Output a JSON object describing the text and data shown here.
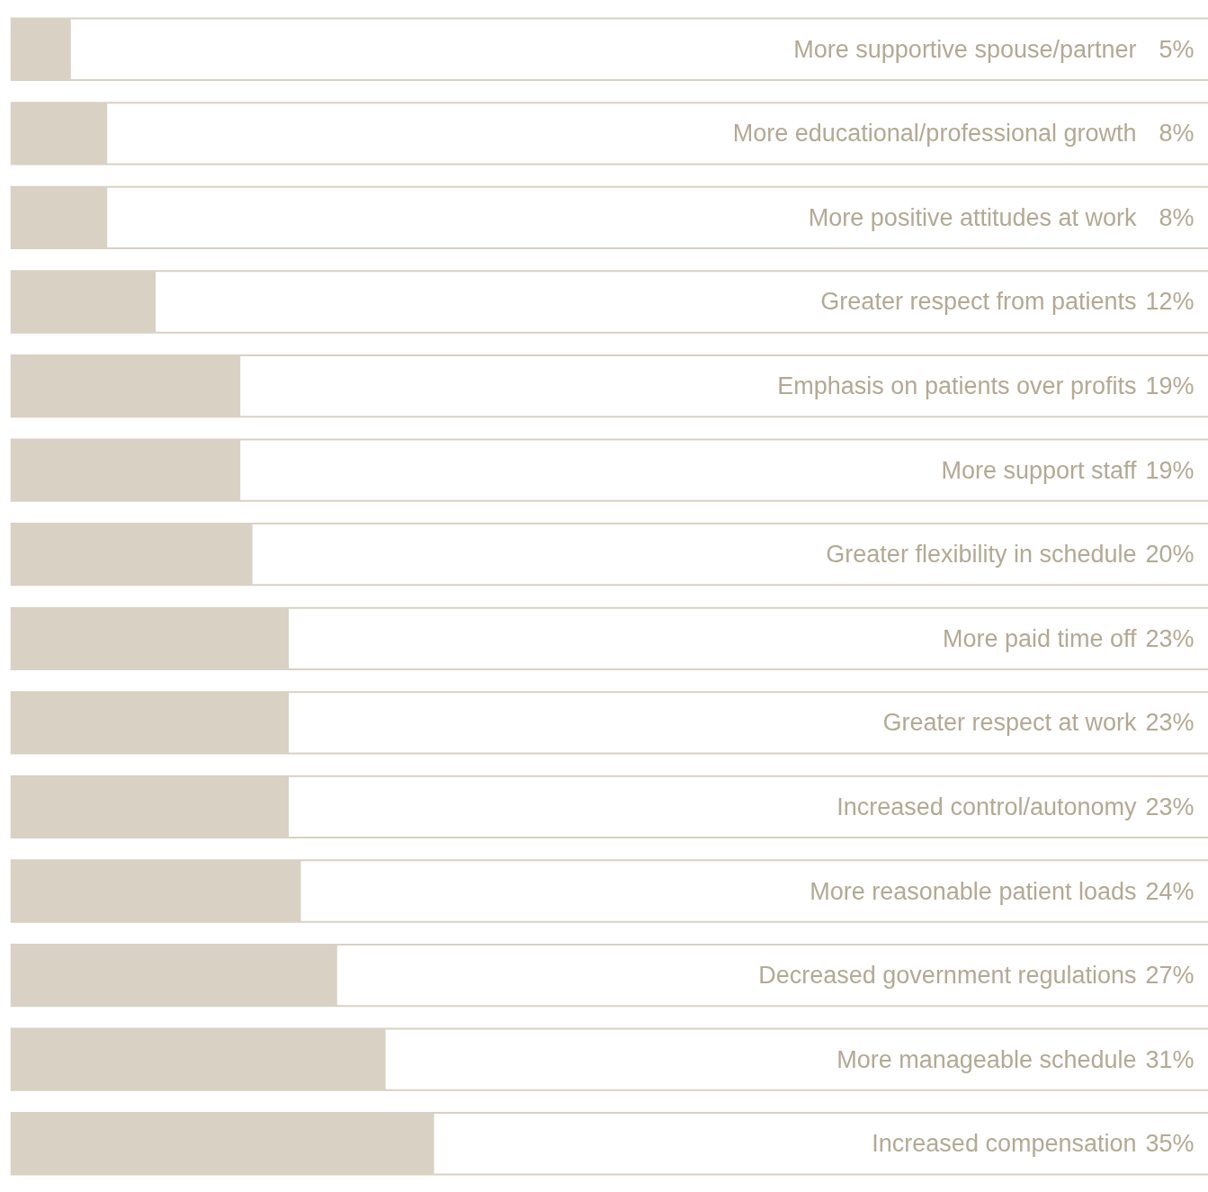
{
  "chart_data": {
    "type": "bar",
    "orientation": "horizontal",
    "color": "#d8d1c4",
    "categories": [
      "More supportive spouse/partner",
      "More educational/professional growth",
      "More positive attitudes at work",
      "Greater respect from patients",
      "Emphasis on patients over profits",
      "More support staff",
      "Greater flexibility in schedule",
      "More paid time off",
      "Greater respect at work",
      "Increased control/autonomy",
      "More reasonable patient loads",
      "Decreased government regulations",
      "More manageable schedule",
      "Increased compensation"
    ],
    "values": [
      5,
      8,
      8,
      12,
      19,
      19,
      20,
      23,
      23,
      23,
      24,
      27,
      31,
      35
    ],
    "value_labels": [
      "5%",
      "8%",
      "8%",
      "12%",
      "19%",
      "19%",
      "20%",
      "23%",
      "23%",
      "23%",
      "24%",
      "27%",
      "31%",
      "35%"
    ],
    "tick_labels": false,
    "grid": false
  }
}
